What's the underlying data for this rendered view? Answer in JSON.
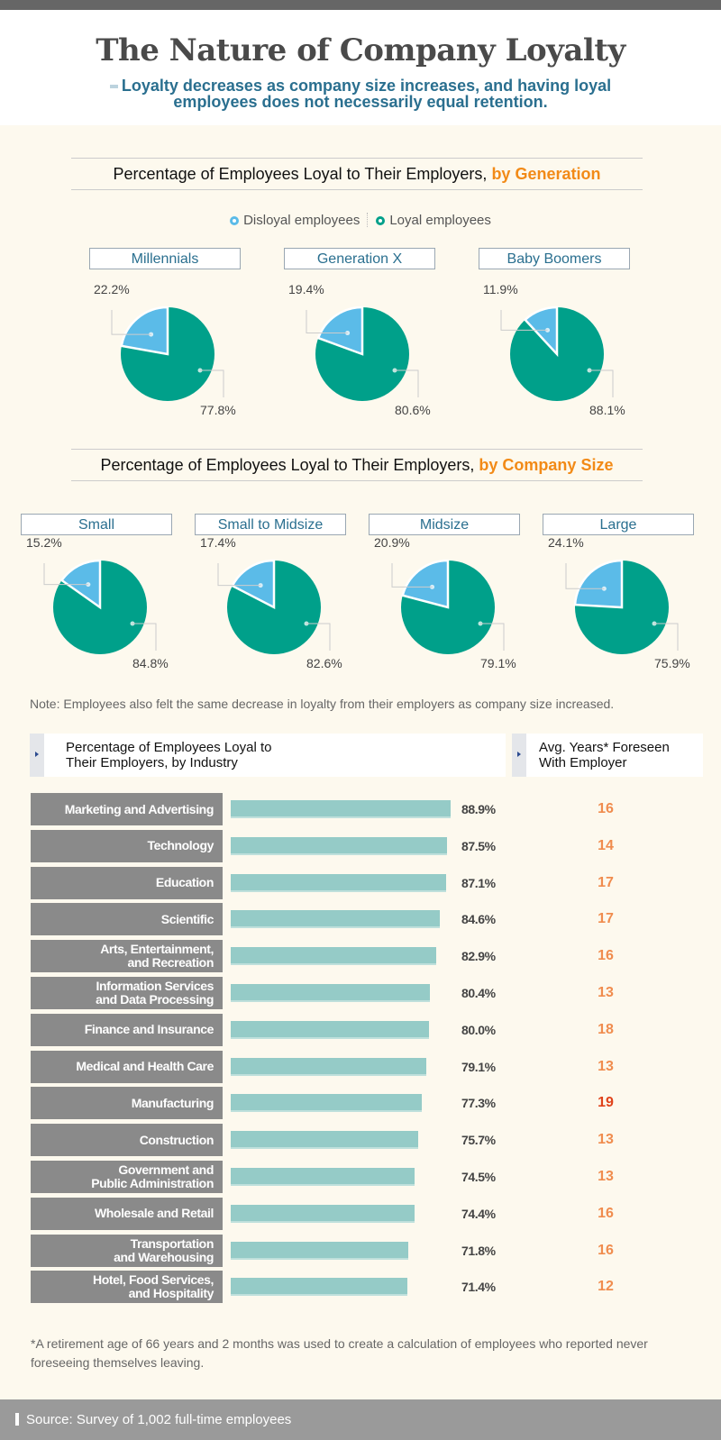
{
  "title": "The Nature of Company Loyalty",
  "subtitle_line1": "Loyalty decreases as company size increases, and having loyal",
  "subtitle_line2": "employees does not necessarily equal retention.",
  "colors": {
    "loyal": "#00a08a",
    "disloyal": "#5bbbe8",
    "accent": "#f28a17",
    "years_high": "#e0431b",
    "years": "#f08c4e"
  },
  "chart_data": [
    {
      "type": "pie",
      "title_main": "Percentage of Employees Loyal to Their Employers,",
      "title_highlight": "by Generation",
      "legend": [
        "Disloyal employees",
        "Loyal employees"
      ],
      "pies": [
        {
          "name": "Millennials",
          "disloyal": 22.2,
          "loyal": 77.8,
          "disloyal_label": "22.2%",
          "loyal_label": "77.8%"
        },
        {
          "name": "Generation X",
          "disloyal": 19.4,
          "loyal": 80.6,
          "disloyal_label": "19.4%",
          "loyal_label": "80.6%"
        },
        {
          "name": "Baby Boomers",
          "disloyal": 11.9,
          "loyal": 88.1,
          "disloyal_label": "11.9%",
          "loyal_label": "88.1%"
        }
      ]
    },
    {
      "type": "pie",
      "title_main": "Percentage of Employees Loyal to Their Employers,",
      "title_highlight": "by Company Size",
      "pies": [
        {
          "name": "Small",
          "disloyal": 15.2,
          "loyal": 84.8,
          "disloyal_label": "15.2%",
          "loyal_label": "84.8%"
        },
        {
          "name": "Small to Midsize",
          "disloyal": 17.4,
          "loyal": 82.6,
          "disloyal_label": "17.4%",
          "loyal_label": "82.6%"
        },
        {
          "name": "Midsize",
          "disloyal": 20.9,
          "loyal": 79.1,
          "disloyal_label": "20.9%",
          "loyal_label": "79.1%"
        },
        {
          "name": "Large",
          "disloyal": 24.1,
          "loyal": 75.9,
          "disloyal_label": "24.1%",
          "loyal_label": "75.9%"
        }
      ]
    },
    {
      "type": "bar",
      "orientation": "horizontal",
      "header_left_line1": "Percentage of Employees Loyal to",
      "header_left_line2": "Their Employers, by Industry",
      "header_right_line1": "Avg. Years* Foreseen",
      "header_right_line2": "With Employer",
      "rows": [
        {
          "industry": "Marketing and Advertising",
          "value": 88.9,
          "pct_label": "88.9%",
          "years": "16"
        },
        {
          "industry": "Technology",
          "value": 87.5,
          "pct_label": "87.5%",
          "years": "14"
        },
        {
          "industry": "Education",
          "value": 87.1,
          "pct_label": "87.1%",
          "years": "17"
        },
        {
          "industry": "Scientific",
          "value": 84.6,
          "pct_label": "84.6%",
          "years": "17"
        },
        {
          "industry": "Arts, Entertainment, and Recreation",
          "value": 82.9,
          "pct_label": "82.9%",
          "years": "16"
        },
        {
          "industry": "Information Services and Data Processing",
          "value": 80.4,
          "pct_label": "80.4%",
          "years": "13"
        },
        {
          "industry": "Finance and Insurance",
          "value": 80.0,
          "pct_label": "80.0%",
          "years": "18"
        },
        {
          "industry": "Medical and Health Care",
          "value": 79.1,
          "pct_label": "79.1%",
          "years": "13"
        },
        {
          "industry": "Manufacturing",
          "value": 77.3,
          "pct_label": "77.3%",
          "years": "19"
        },
        {
          "industry": "Construction",
          "value": 75.7,
          "pct_label": "75.7%",
          "years": "13"
        },
        {
          "industry": "Government and Public Administration",
          "value": 74.5,
          "pct_label": "74.5%",
          "years": "13"
        },
        {
          "industry": "Wholesale and Retail",
          "value": 74.4,
          "pct_label": "74.4%",
          "years": "16"
        },
        {
          "industry": "Transportation and Warehousing",
          "value": 71.8,
          "pct_label": "71.8%",
          "years": "16"
        },
        {
          "industry": "Hotel, Food Services, and Hospitality",
          "value": 71.4,
          "pct_label": "71.4%",
          "years": "12"
        }
      ]
    }
  ],
  "note": "Note: Employees also felt the same decrease in loyalty from their employers as company size increased.",
  "footnote": "*A retirement age of 66 years and 2 months was used to create a calculation of employees who reported never foreseeing themselves leaving.",
  "source": "Source: Survey of 1,002 full-time employees"
}
